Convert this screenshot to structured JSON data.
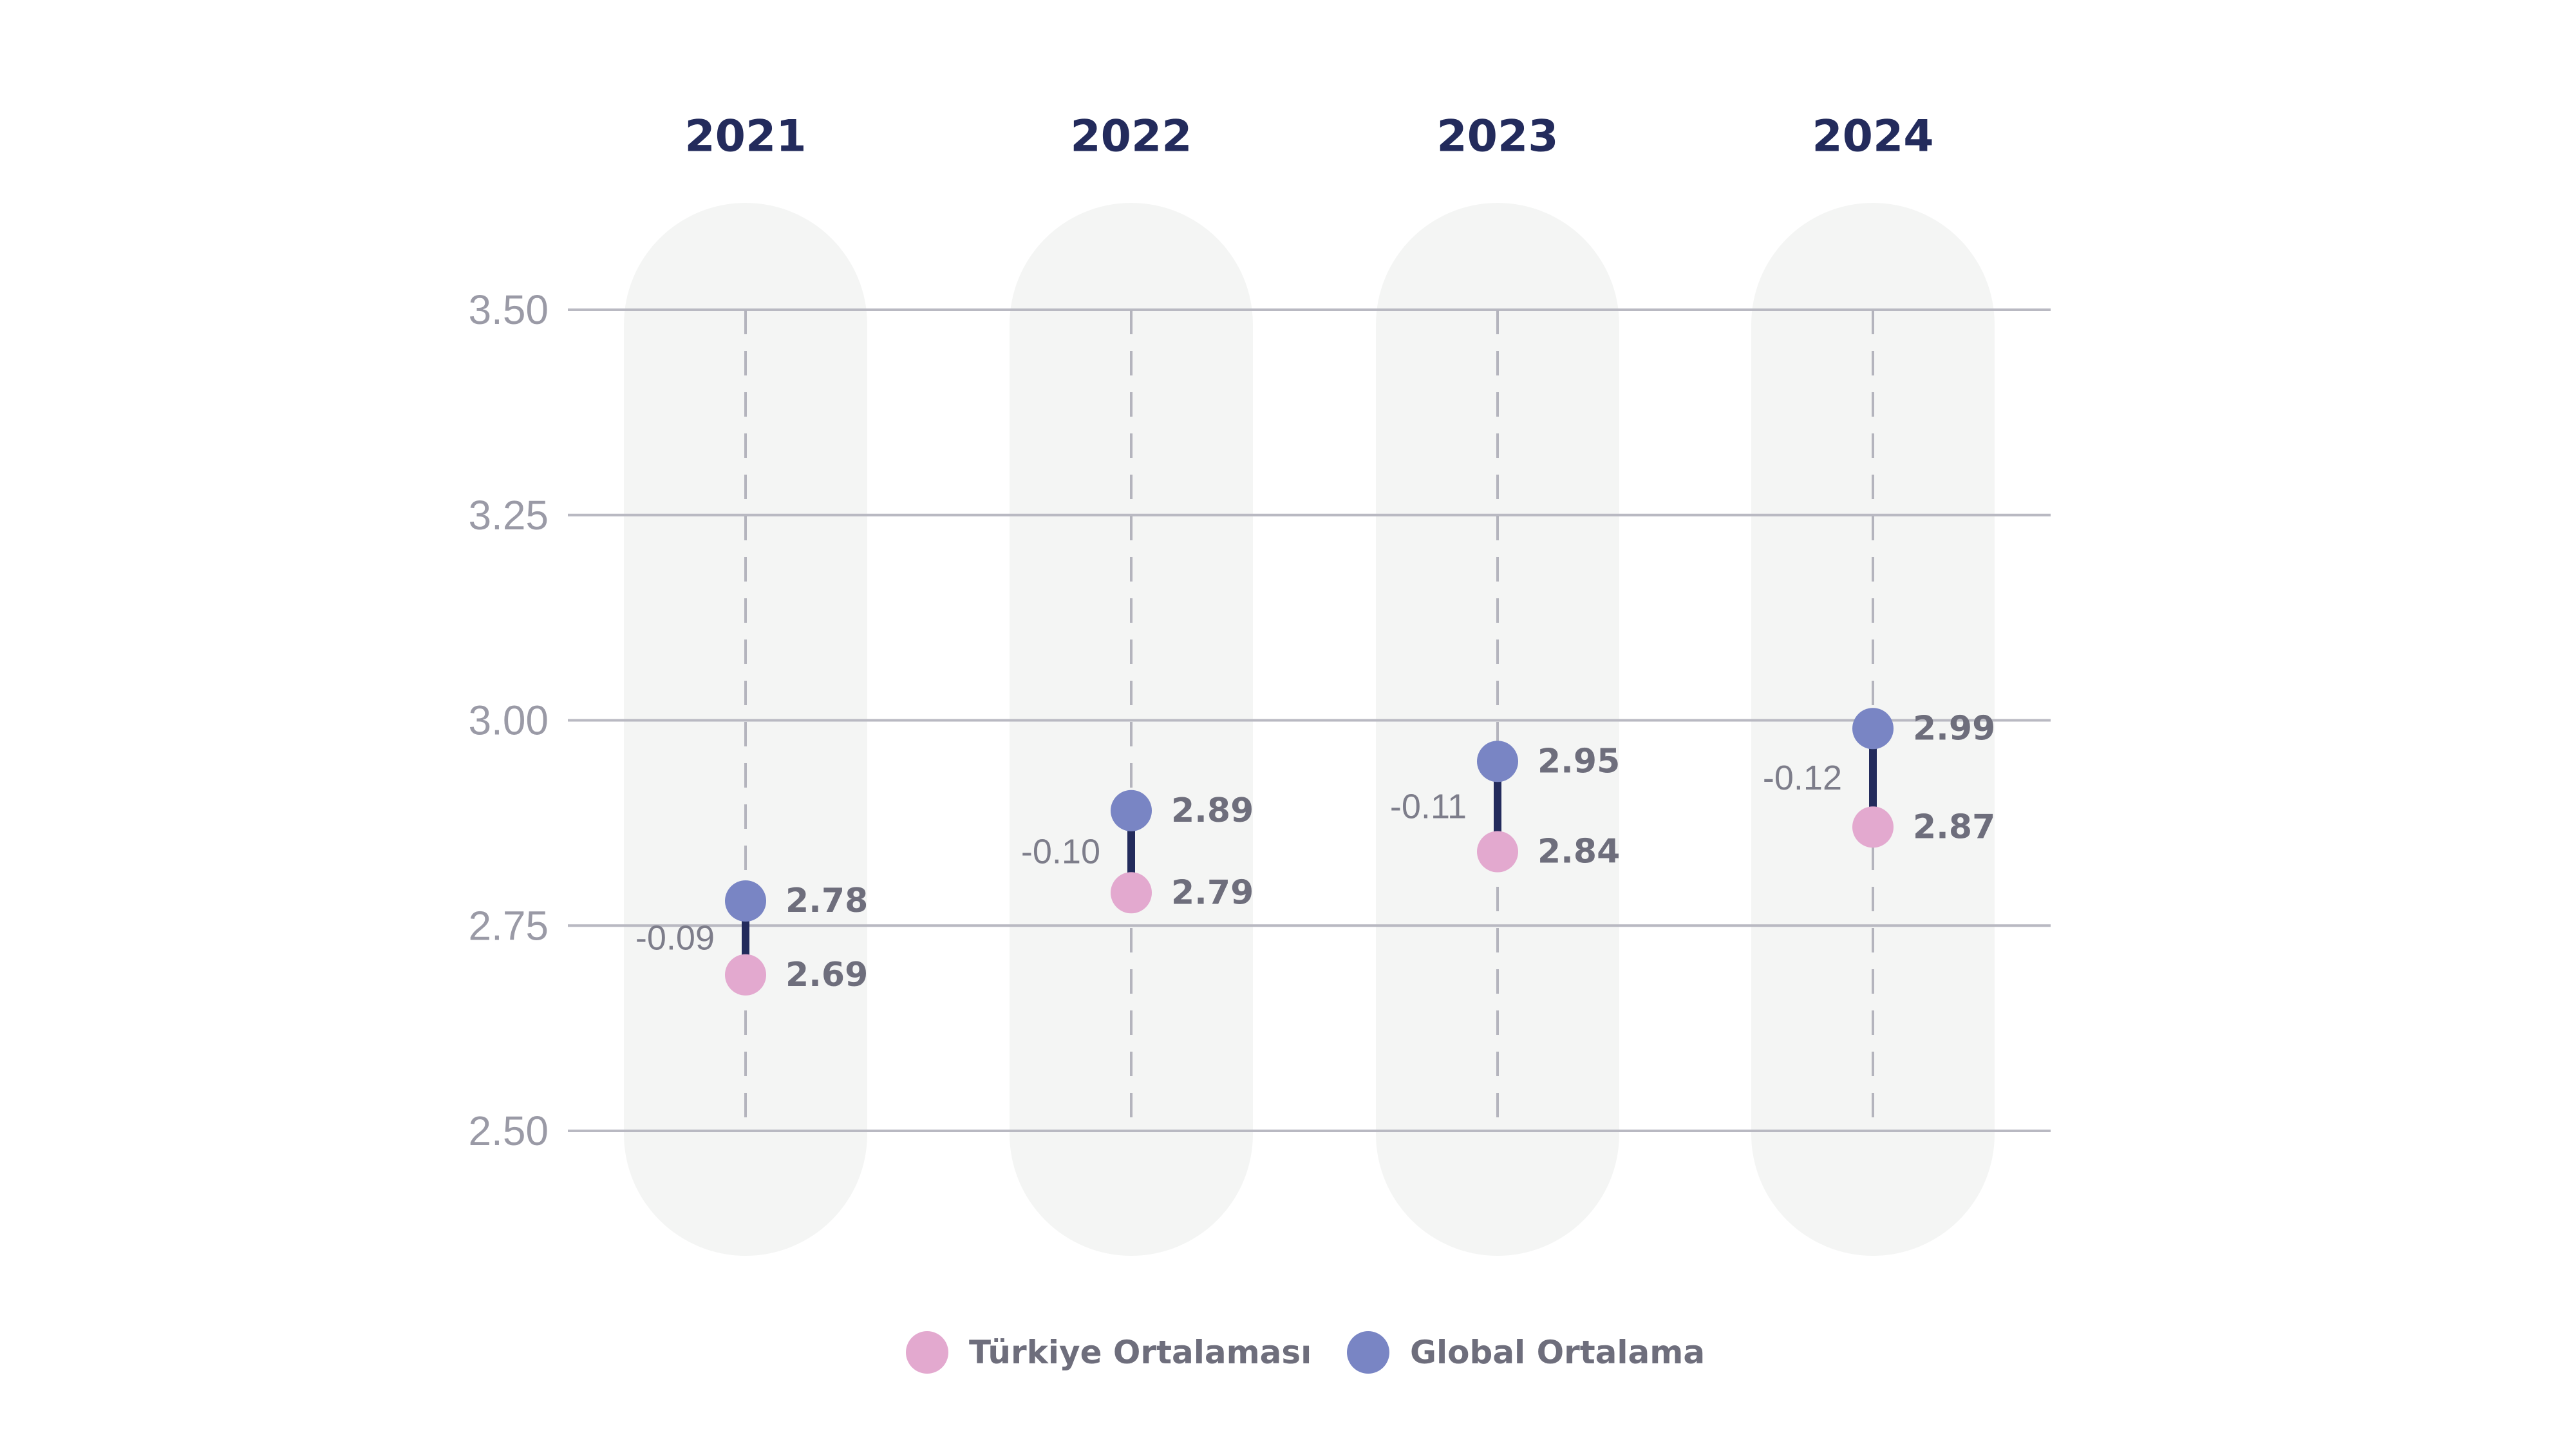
{
  "chart_data": {
    "type": "dumbbell",
    "categories": [
      "2021",
      "2022",
      "2023",
      "2024"
    ],
    "series": [
      {
        "name": "Global Ortalama",
        "color": "#7985c4",
        "values": [
          2.78,
          2.89,
          2.95,
          2.99
        ],
        "labels": [
          "2.78",
          "2.89",
          "2.95",
          "2.99"
        ]
      },
      {
        "name": "Türkiye Ortalaması",
        "color": "#e3a9cf",
        "values": [
          2.69,
          2.79,
          2.84,
          2.87
        ],
        "labels": [
          "2.69",
          "2.79",
          "2.84",
          "2.87"
        ]
      }
    ],
    "differences": [
      "-0.09",
      "-0.10",
      "-0.11",
      "-0.12"
    ],
    "yticks": [
      "3.50",
      "3.25",
      "3.00",
      "2.75",
      "2.50"
    ],
    "ylim": [
      2.5,
      3.5
    ],
    "grid": true,
    "legend_position": "bottom-center",
    "legend": [
      {
        "label": "Türkiye Ortalaması",
        "color": "#e3a9cf"
      },
      {
        "label": "Global Ortalama",
        "color": "#7985c4"
      }
    ],
    "connector_color": "#232b5c"
  }
}
